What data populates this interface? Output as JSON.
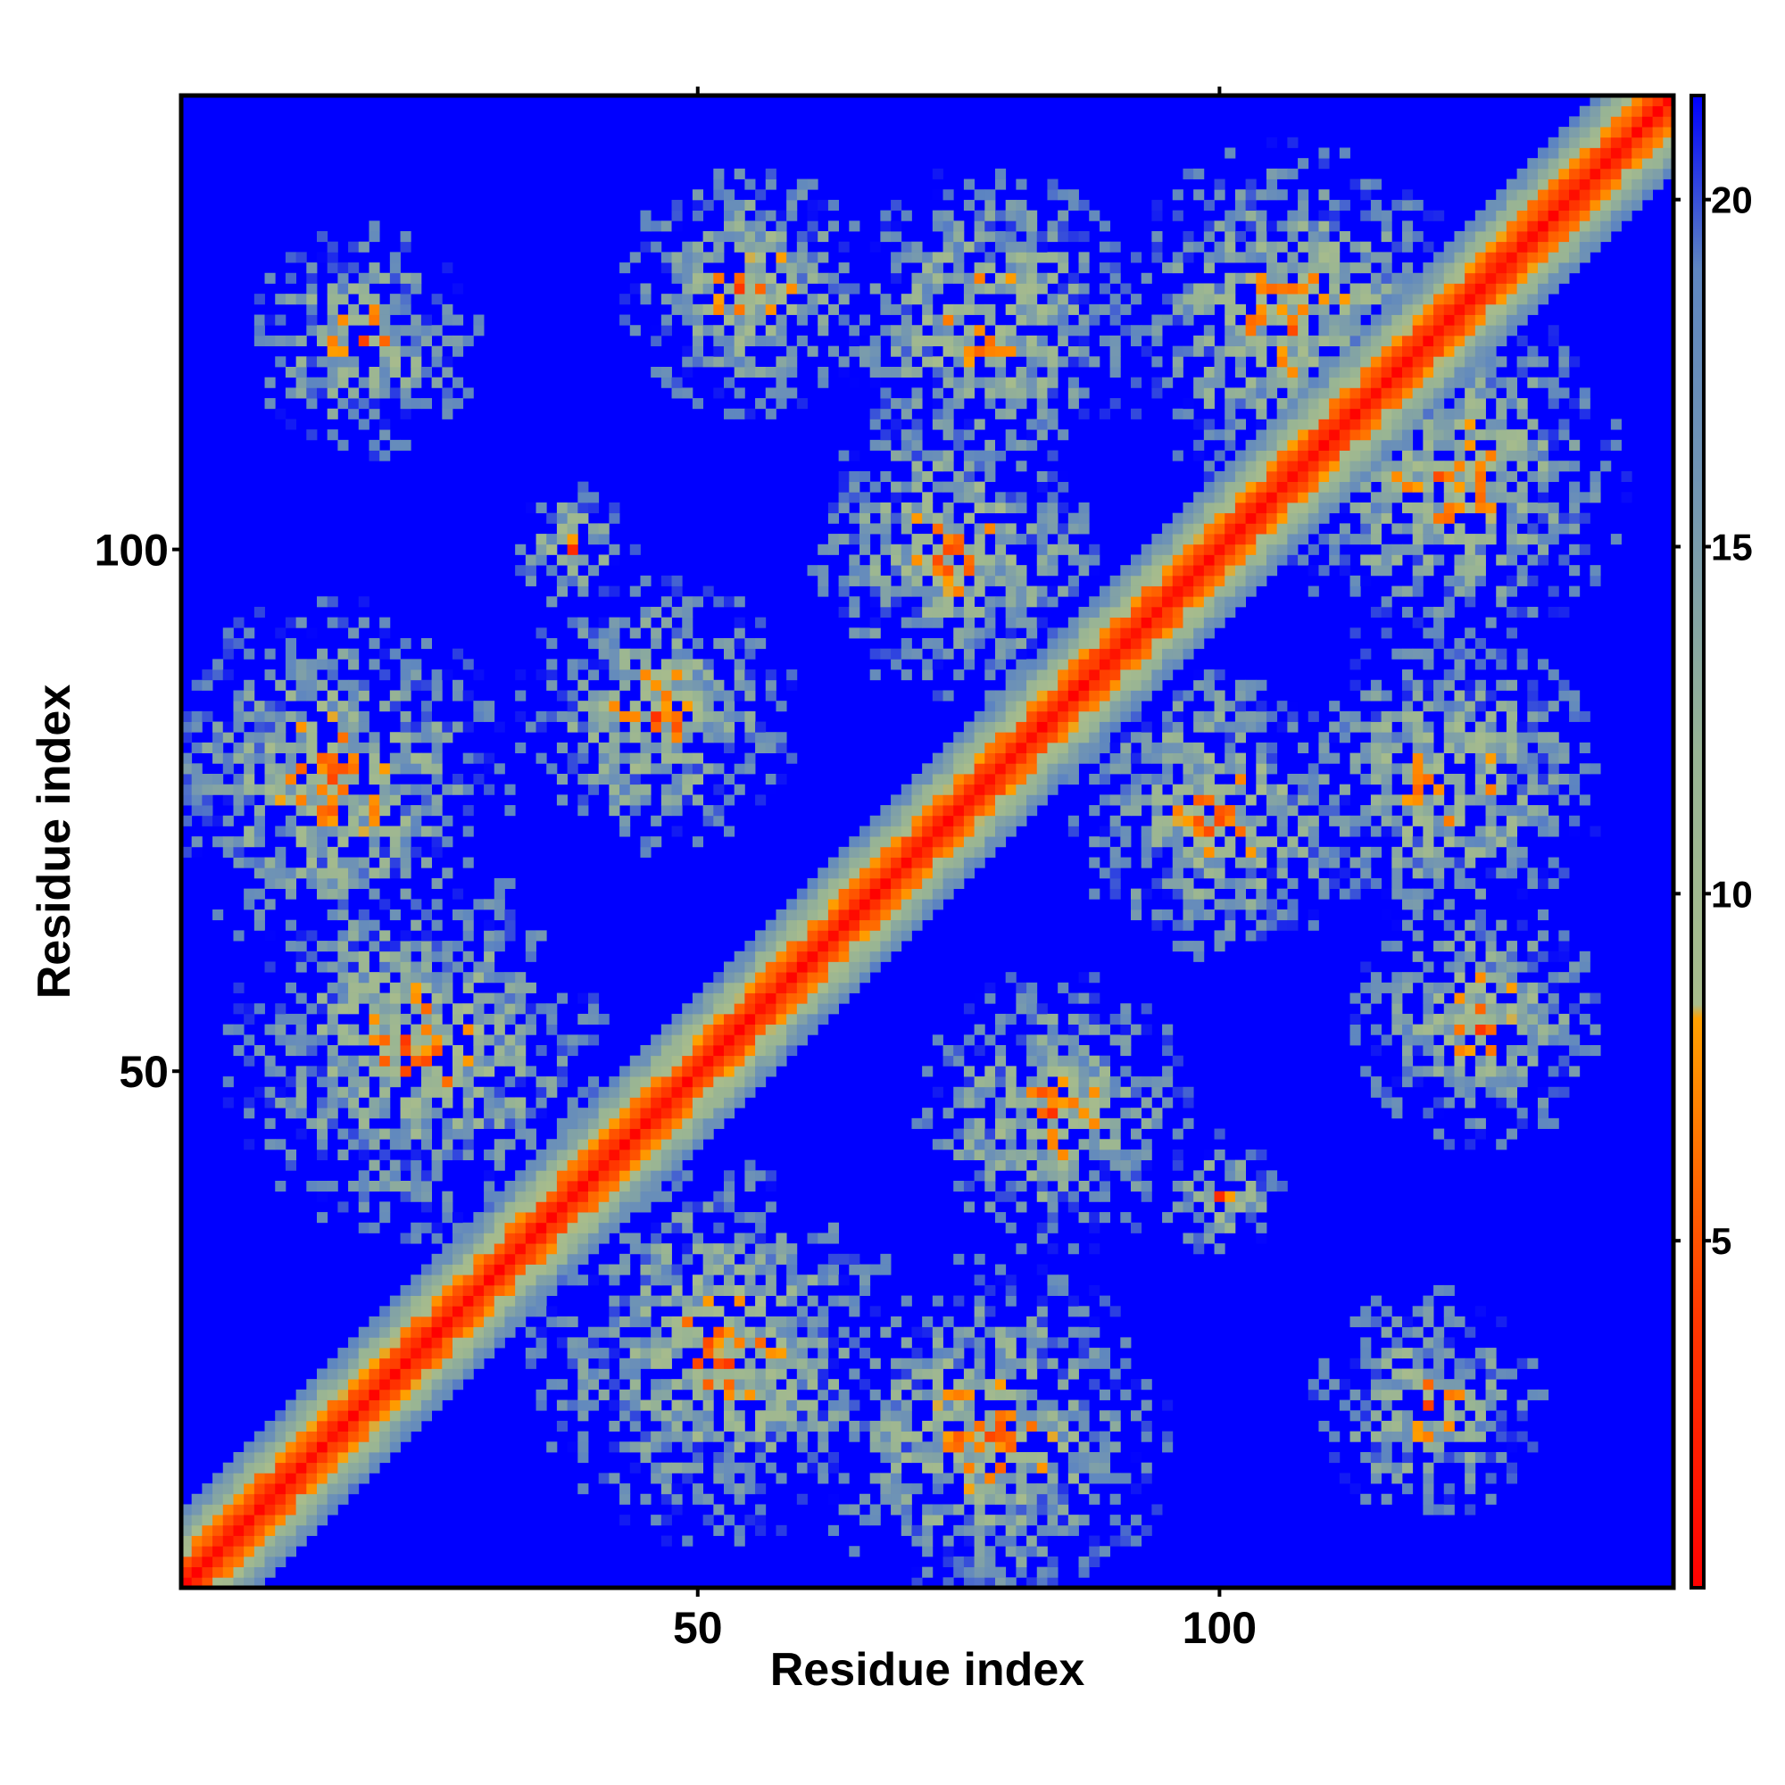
{
  "chart_data": {
    "type": "heatmap",
    "description_free": true,
    "xlabel": "Residue index",
    "ylabel": "Residue index",
    "x_ticks": [
      50,
      100
    ],
    "y_ticks": [
      50,
      100
    ],
    "xlim": [
      1,
      143
    ],
    "ylim": [
      1,
      143
    ],
    "n_residues": 143,
    "colorbar": {
      "ticks": [
        5,
        10,
        15,
        20
      ],
      "range": [
        0,
        21.5
      ],
      "colors": [
        {
          "value": 0,
          "color": "#ff0000"
        },
        {
          "value": 4,
          "color": "#ff3a00"
        },
        {
          "value": 8.2,
          "color": "#ffa000"
        },
        {
          "value": 8.4,
          "color": "#a8bc8c"
        },
        {
          "value": 12,
          "color": "#98b494"
        },
        {
          "value": 16,
          "color": "#7094b4"
        },
        {
          "value": 19,
          "color": "#5e86c0"
        },
        {
          "value": 21.5,
          "color": "#0000ff"
        }
      ],
      "background_color": "#0000ff"
    },
    "contact_regions": [
      {
        "x_center": 15,
        "y_center": 78,
        "radius": 14
      },
      {
        "x_center": 23,
        "y_center": 52,
        "radius": 15
      },
      {
        "x_center": 46,
        "y_center": 84,
        "radius": 11
      },
      {
        "x_center": 52,
        "y_center": 23,
        "radius": 15
      },
      {
        "x_center": 78,
        "y_center": 15,
        "radius": 14
      },
      {
        "x_center": 84,
        "y_center": 46,
        "radius": 11
      },
      {
        "x_center": 75,
        "y_center": 100,
        "radius": 12
      },
      {
        "x_center": 100,
        "y_center": 75,
        "radius": 12
      },
      {
        "x_center": 107,
        "y_center": 122,
        "radius": 14
      },
      {
        "x_center": 122,
        "y_center": 107,
        "radius": 14
      },
      {
        "x_center": 122,
        "y_center": 78,
        "radius": 12
      },
      {
        "x_center": 78,
        "y_center": 122,
        "radius": 12
      },
      {
        "x_center": 18,
        "y_center": 120,
        "radius": 9
      },
      {
        "x_center": 120,
        "y_center": 18,
        "radius": 9
      },
      {
        "x_center": 55,
        "y_center": 125,
        "radius": 10
      },
      {
        "x_center": 125,
        "y_center": 55,
        "radius": 10
      },
      {
        "x_center": 38,
        "y_center": 100,
        "radius": 5
      },
      {
        "x_center": 100,
        "y_center": 38,
        "radius": 5
      }
    ]
  }
}
